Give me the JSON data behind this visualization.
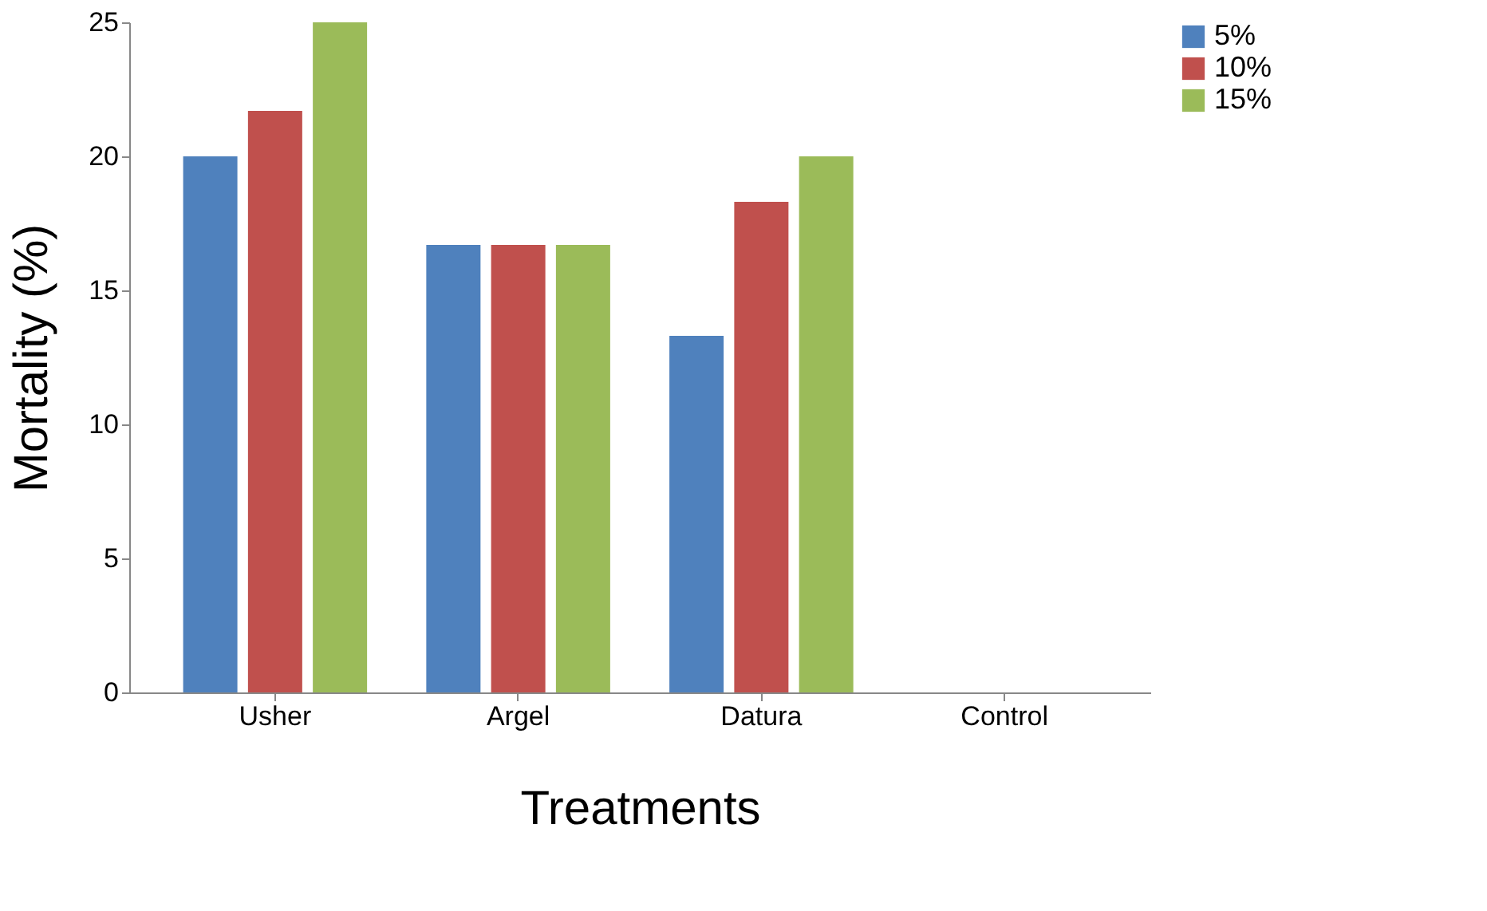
{
  "chart_data": {
    "type": "bar",
    "xlabel": "Treatments",
    "ylabel": "Mortality (%)",
    "categories": [
      "Usher",
      "Argel",
      "Datura",
      "Control"
    ],
    "series": [
      {
        "name": "5%",
        "color": "#4f81bd",
        "values": [
          20,
          16.7,
          13.3,
          0
        ]
      },
      {
        "name": "10%",
        "color": "#c0504d",
        "values": [
          21.7,
          16.7,
          18.3,
          0
        ]
      },
      {
        "name": "15%",
        "color": "#9bbb59",
        "values": [
          25,
          16.7,
          20,
          0
        ]
      }
    ],
    "ylim": [
      0,
      25
    ],
    "yticks": [
      0,
      5,
      10,
      15,
      20,
      25
    ],
    "grid": false,
    "legend": "right"
  }
}
